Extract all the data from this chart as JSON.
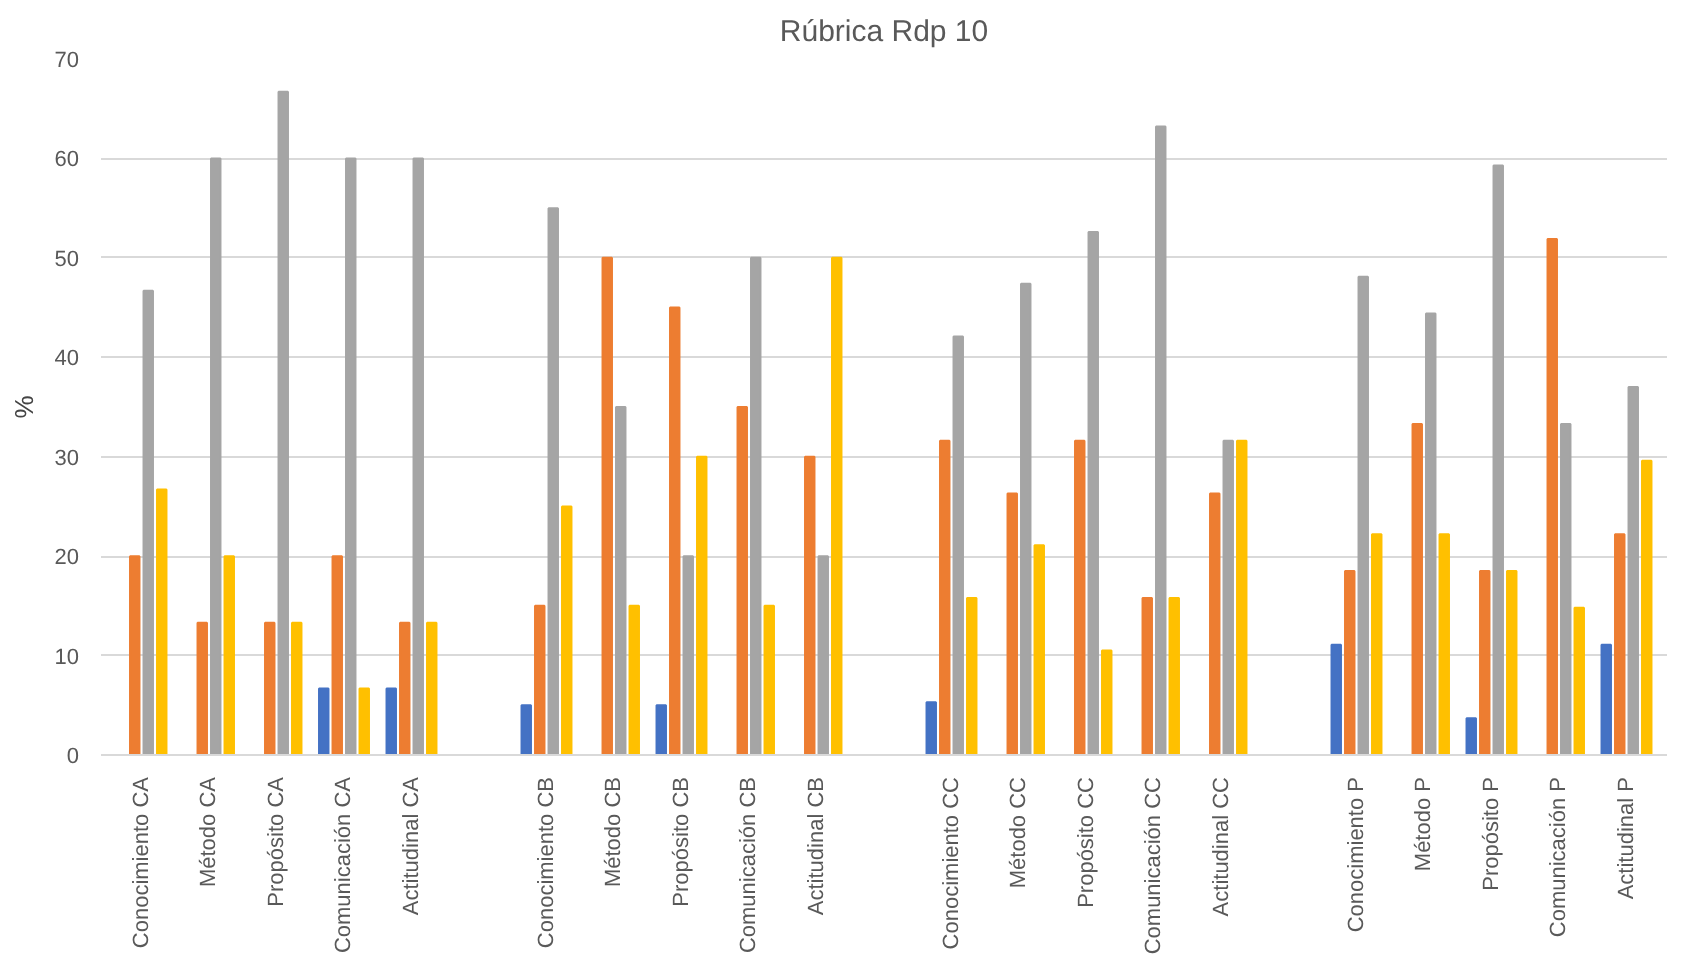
{
  "chart_data": {
    "type": "bar",
    "title": "Rúbrica Rdp 10",
    "ylabel": "%",
    "categories": [
      "Conocimiento CA",
      "Método CA",
      "Propósito CA",
      "Comunicación CA",
      "Actitudinal CA",
      null,
      "Conocimiento CB",
      "Método CB",
      "Propósito CB",
      "Comunicación CB",
      "Actitudinal CB",
      null,
      "Conocimiento CC",
      "Método CC",
      "Propósito CC",
      "Comunicación CC",
      "Actitudinal CC",
      null,
      "Conocimiento P",
      "Método P",
      "Propósito P",
      "Comunicación P",
      "Actitudinal P"
    ],
    "series": [
      {
        "color": "#4472c4",
        "values": [
          0,
          0,
          0,
          6.7,
          6.7,
          null,
          5,
          0,
          5,
          0,
          0,
          null,
          5.3,
          0,
          0,
          0,
          0,
          null,
          11.1,
          0,
          3.7,
          0,
          11.1
        ]
      },
      {
        "color": "#ed7d31",
        "values": [
          20,
          13.3,
          13.3,
          20,
          13.3,
          null,
          15,
          50,
          45,
          35,
          30,
          null,
          31.6,
          26.3,
          31.6,
          15.8,
          26.3,
          null,
          18.5,
          33.3,
          18.5,
          51.9,
          22.2
        ]
      },
      {
        "color": "#a5a5a5",
        "values": [
          46.7,
          60,
          66.7,
          60,
          60,
          null,
          55,
          35,
          20,
          50,
          20,
          null,
          42.1,
          47.4,
          52.6,
          63.2,
          31.6,
          null,
          48.1,
          44.4,
          59.3,
          33.3,
          37
        ]
      },
      {
        "color": "#ffc000",
        "values": [
          26.7,
          20,
          13.3,
          6.7,
          13.3,
          null,
          25,
          15,
          30,
          15,
          50,
          null,
          15.8,
          21.1,
          10.5,
          15.8,
          31.6,
          null,
          22.2,
          22.2,
          18.5,
          14.8,
          29.6
        ]
      }
    ],
    "ylim": [
      0,
      70
    ],
    "yticks": [
      0,
      10,
      20,
      30,
      40,
      50,
      60,
      70
    ],
    "grid": "y"
  }
}
